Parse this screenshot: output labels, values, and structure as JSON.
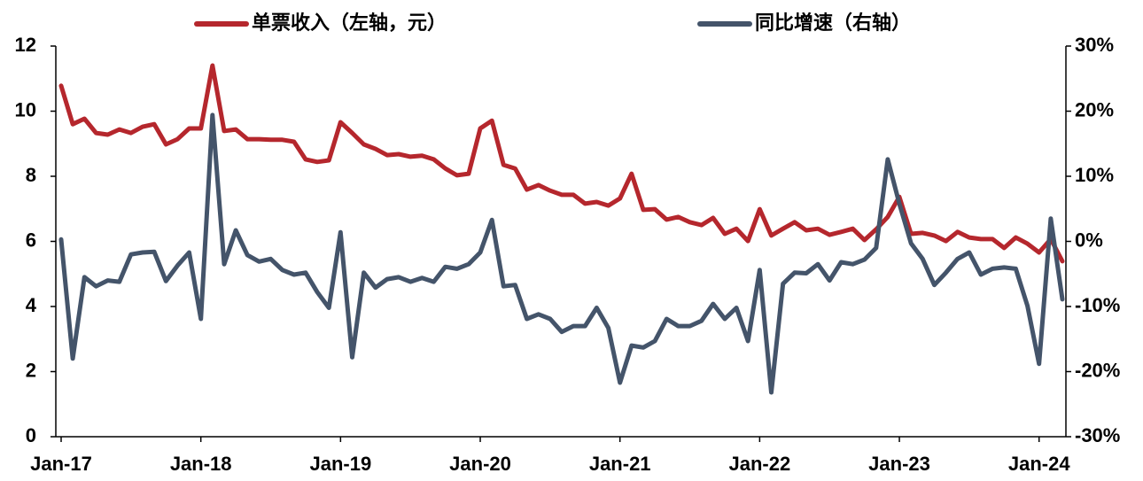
{
  "chart_data": {
    "type": "line",
    "categories": [
      "Jan-17",
      null,
      null,
      null,
      null,
      null,
      null,
      null,
      null,
      null,
      null,
      null,
      "Jan-18",
      null,
      null,
      null,
      null,
      null,
      null,
      null,
      null,
      null,
      null,
      null,
      "Jan-19",
      null,
      null,
      null,
      null,
      null,
      null,
      null,
      null,
      null,
      null,
      null,
      "Jan-20",
      null,
      null,
      null,
      null,
      null,
      null,
      null,
      null,
      null,
      null,
      null,
      "Jan-21",
      null,
      null,
      null,
      null,
      null,
      null,
      null,
      null,
      null,
      null,
      null,
      "Jan-22",
      null,
      null,
      null,
      null,
      null,
      null,
      null,
      null,
      null,
      null,
      null,
      "Jan-23",
      null,
      null,
      null,
      null,
      null,
      null,
      null,
      null,
      null,
      null,
      null,
      "Jan-24",
      null,
      null
    ],
    "series": [
      {
        "name": "单票收入（左轴，元）",
        "color": "#b5272d",
        "values": [
          10.78,
          9.6,
          9.77,
          9.33,
          9.28,
          9.44,
          9.33,
          9.52,
          9.6,
          8.98,
          9.14,
          9.47,
          9.47,
          11.4,
          9.39,
          9.44,
          9.14,
          9.14,
          9.12,
          9.12,
          9.06,
          8.52,
          8.44,
          8.49,
          9.66,
          9.33,
          8.98,
          8.84,
          8.65,
          8.68,
          8.6,
          8.63,
          8.52,
          8.24,
          8.03,
          8.08,
          9.47,
          9.71,
          8.35,
          8.24,
          7.59,
          7.73,
          7.56,
          7.43,
          7.43,
          7.16,
          7.21,
          7.1,
          7.32,
          8.08,
          6.97,
          6.99,
          6.67,
          6.75,
          6.59,
          6.5,
          6.72,
          6.23,
          6.39,
          6.01,
          6.99,
          6.18,
          6.39,
          6.59,
          6.34,
          6.39,
          6.2,
          6.29,
          6.39,
          6.04,
          6.37,
          6.75,
          7.37,
          6.23,
          6.26,
          6.18,
          6.01,
          6.29,
          6.12,
          6.07,
          6.07,
          5.8,
          6.12,
          5.93,
          5.66,
          6.07,
          5.39
        ]
      },
      {
        "name": "同比增速（右轴）",
        "color": "#44546a",
        "axis": "y2",
        "values": [
          0.3,
          -18,
          -5.5,
          -6.9,
          -6,
          -6.2,
          -2,
          -1.7,
          -1.6,
          -6.1,
          -3.7,
          -1.7,
          -11.9,
          19.4,
          -3.5,
          1.7,
          -2.1,
          -3.1,
          -2.7,
          -4.4,
          -5.1,
          -4.8,
          -7.8,
          -10.2,
          1.4,
          -17.8,
          -4.8,
          -7.1,
          -5.8,
          -5.5,
          -6.2,
          -5.6,
          -6.2,
          -3.9,
          -4.2,
          -3.5,
          -1.7,
          3.3,
          -6.9,
          -6.7,
          -11.9,
          -11.2,
          -11.9,
          -13.9,
          -13,
          -13,
          -10.2,
          -13.3,
          -21.7,
          -16,
          -16.3,
          -15.3,
          -11.9,
          -13,
          -13,
          -12.2,
          -9.6,
          -11.9,
          -10.2,
          -15.3,
          -4.4,
          -23.2,
          -6.5,
          -4.8,
          -4.9,
          -3.5,
          -6,
          -3.2,
          -3.5,
          -2.8,
          -1,
          12.6,
          5.8,
          -0.3,
          -2.7,
          -6.7,
          -4.8,
          -2.7,
          -1.7,
          -5.1,
          -4.2,
          -4,
          -4.2,
          -9.9,
          -18.8,
          3.5,
          -8.9
        ]
      }
    ],
    "ylim": [
      0,
      12
    ],
    "yticks": [
      0,
      2,
      4,
      6,
      8,
      10,
      12
    ],
    "y2lim": [
      -30,
      30
    ],
    "y2ticks": [
      {
        "value": -30,
        "label": "-30%"
      },
      {
        "value": -20,
        "label": "-20%"
      },
      {
        "value": -10,
        "label": "-10%"
      },
      {
        "value": 0,
        "label": "0%"
      },
      {
        "value": 10,
        "label": "10%"
      },
      {
        "value": 20,
        "label": "20%"
      },
      {
        "value": 30,
        "label": "30%"
      }
    ],
    "legend": "top"
  }
}
